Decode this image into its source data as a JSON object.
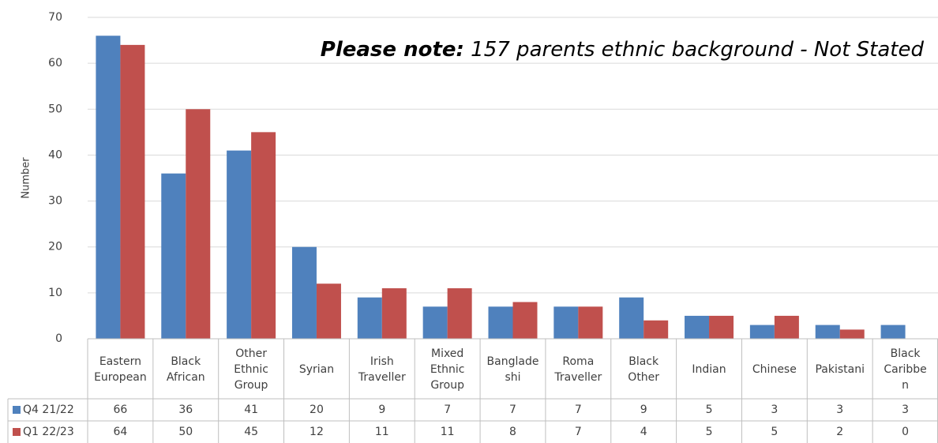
{
  "chart_data": {
    "type": "bar",
    "ylabel": "Number",
    "ylim": [
      0,
      70
    ],
    "yticks": [
      0,
      10,
      20,
      30,
      40,
      50,
      60,
      70
    ],
    "grid": true,
    "legend": "data-table-left",
    "categories": [
      [
        "Eastern",
        "European"
      ],
      [
        "Black",
        "African"
      ],
      [
        "Other",
        "Ethnic",
        "Group"
      ],
      [
        "Syrian"
      ],
      [
        "Irish",
        "Traveller"
      ],
      [
        "Mixed",
        "Ethnic",
        "Group"
      ],
      [
        "Banglade",
        "shi"
      ],
      [
        "Roma",
        "Traveller"
      ],
      [
        "Black",
        "Other"
      ],
      [
        "Indian"
      ],
      [
        "Chinese"
      ],
      [
        "Pakistani"
      ],
      [
        "Black",
        "Caribbe",
        "n"
      ]
    ],
    "series": [
      {
        "name": "Q4 21/22",
        "color": "#4f81bd",
        "values": [
          66,
          36,
          41,
          20,
          9,
          7,
          7,
          7,
          9,
          5,
          3,
          3,
          3
        ]
      },
      {
        "name": "Q1 22/23",
        "color": "#c0504d",
        "values": [
          64,
          50,
          45,
          12,
          11,
          11,
          8,
          7,
          4,
          5,
          5,
          2,
          0
        ]
      }
    ]
  },
  "annotation": {
    "label": "Please note:",
    "text": " 157 parents ethnic background - Not Stated"
  }
}
